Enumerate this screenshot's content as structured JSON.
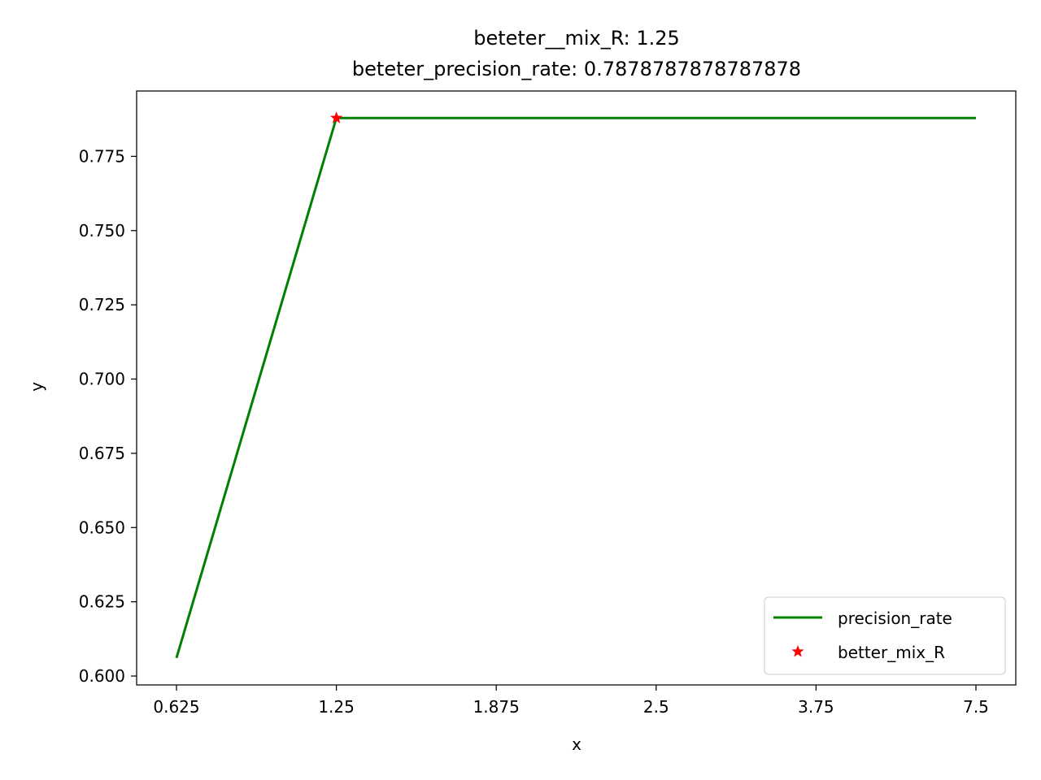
{
  "chart_data": {
    "type": "line",
    "title_lines": [
      "beteter__mix_R: 1.25",
      "beteter_precision_rate: 0.7878787878787878"
    ],
    "xlabel": "x",
    "ylabel": "y",
    "categories": [
      "0.625",
      "1.25",
      "1.875",
      "2.5",
      "3.75",
      "7.5"
    ],
    "series": [
      {
        "name": "precision_rate",
        "color": "#008000",
        "marker": "line",
        "values": [
          0.6061,
          0.7879,
          0.7879,
          0.7879,
          0.7879,
          0.7879
        ]
      },
      {
        "name": "better_mix_R",
        "color": "#ff0000",
        "marker": "star",
        "points": [
          {
            "x": "1.25",
            "y": 0.7879
          }
        ]
      }
    ],
    "yticks": [
      "0.600",
      "0.625",
      "0.650",
      "0.675",
      "0.700",
      "0.725",
      "0.750",
      "0.775"
    ],
    "ylim": [
      0.597,
      0.797
    ],
    "legend_position": "lower-right",
    "grid": false
  }
}
